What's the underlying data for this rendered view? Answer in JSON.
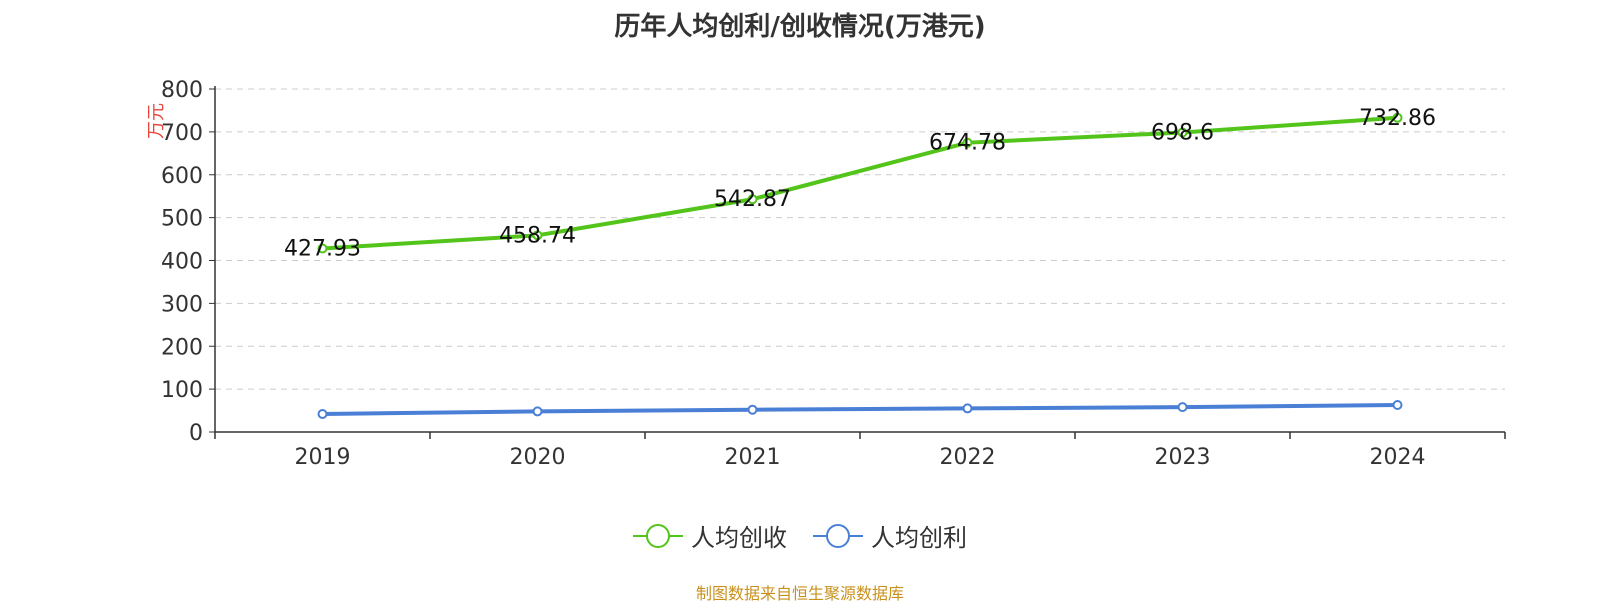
{
  "title": "历年人均创利/创收情况(万港元)",
  "source": "制图数据来自恒生聚源数据库",
  "chart_data": {
    "type": "line",
    "title": "历年人均创利/创收情况(万港元)",
    "ylabel": "万元",
    "xlabel": "",
    "ylim": [
      0,
      800
    ],
    "yticks": [
      0,
      100,
      200,
      300,
      400,
      500,
      600,
      700,
      800
    ],
    "categories": [
      "2019",
      "2020",
      "2021",
      "2022",
      "2023",
      "2024"
    ],
    "grid": true,
    "legend_position": "bottom",
    "series": [
      {
        "name": "人均创收",
        "color": "#52c41a",
        "values": [
          427.93,
          458.74,
          542.87,
          674.78,
          698.6,
          732.86
        ],
        "labels": [
          "427.93",
          "458.74",
          "542.87",
          "674.78",
          "698.6",
          "732.86"
        ]
      },
      {
        "name": "人均创利",
        "color": "#4a7fd6",
        "values": [
          42,
          48,
          52,
          55,
          58,
          63
        ],
        "labels": []
      }
    ]
  }
}
